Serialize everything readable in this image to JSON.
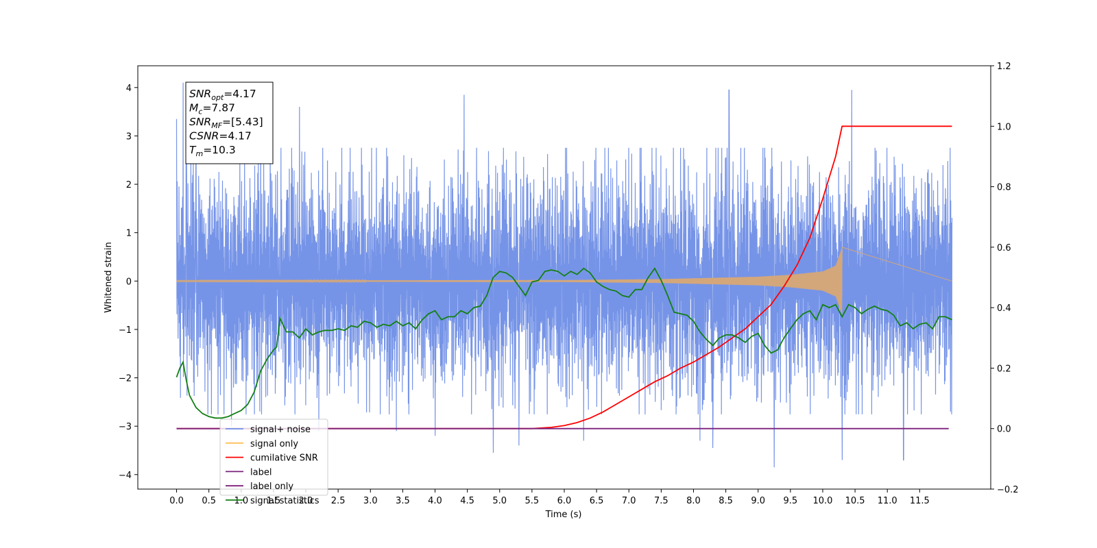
{
  "chart_data": {
    "type": "line",
    "xlabel": "Time (s)",
    "ylabel": "Whitened strain",
    "xlim": [
      -0.6,
      12.6
    ],
    "ylim": [
      -4.3,
      4.45
    ],
    "y2lim": [
      -0.2,
      1.2
    ],
    "xticks": [
      "0.0",
      "0.5",
      "1.0",
      "1.5",
      "2.0",
      "2.5",
      "3.0",
      "3.5",
      "4.0",
      "4.5",
      "5.0",
      "5.5",
      "6.0",
      "6.5",
      "7.0",
      "7.5",
      "8.0",
      "8.5",
      "9.0",
      "9.5",
      "10.0",
      "10.5",
      "11.0",
      "11.5"
    ],
    "yticks": [
      "4",
      "3",
      "2",
      "1",
      "0",
      "−1",
      "−2",
      "−3",
      "−4"
    ],
    "y2ticks": [
      "1.2",
      "1.0",
      "0.8",
      "0.6",
      "0.4",
      "0.2",
      "0.0",
      "−0.2"
    ],
    "grid": false,
    "legend_position": "lower-left",
    "annotation": {
      "lines": [
        {
          "sym": "SNR",
          "sub": "opt",
          "val": "=4.17"
        },
        {
          "sym": "M",
          "sub": "c",
          "val": "=7.87"
        },
        {
          "sym": "SNR",
          "sub": "MF",
          "val": "=[5.43]"
        },
        {
          "sym": "CSNR",
          "sub": "",
          "val": "=4.17"
        },
        {
          "sym": "T",
          "sub": "m",
          "val": "=10.3"
        }
      ]
    },
    "series": [
      {
        "name": "signal+ noise",
        "color": "#6f8ee6",
        "axis": "left",
        "kind": "noise",
        "x_start": 0.0,
        "x_end": 12.0,
        "envelope_typical": 1.9,
        "visible_peaks": [
          [
            0.0,
            3.35
          ],
          [
            0.1,
            4.1
          ],
          [
            0.15,
            4.0
          ],
          [
            0.3,
            3.6
          ],
          [
            0.85,
            -3.0
          ],
          [
            1.3,
            3.2
          ],
          [
            1.45,
            3.0
          ],
          [
            1.9,
            3.6
          ],
          [
            2.2,
            -3.1
          ],
          [
            3.4,
            -3.1
          ],
          [
            4.0,
            -3.2
          ],
          [
            4.45,
            3.85
          ],
          [
            4.9,
            -3.55
          ],
          [
            5.3,
            -3.4
          ],
          [
            6.3,
            -3.3
          ],
          [
            8.1,
            -3.3
          ],
          [
            8.3,
            -3.45
          ],
          [
            8.55,
            3.95
          ],
          [
            9.25,
            -3.85
          ],
          [
            10.3,
            -3.7
          ],
          [
            10.45,
            3.95
          ],
          [
            11.25,
            -3.7
          ]
        ]
      },
      {
        "name": "signal only",
        "color": "#d4a77a",
        "axis": "left",
        "kind": "chirp",
        "amplitude_points": [
          [
            0.0,
            0.01
          ],
          [
            6.0,
            0.02
          ],
          [
            7.5,
            0.04
          ],
          [
            9.0,
            0.09
          ],
          [
            9.5,
            0.13
          ],
          [
            10.0,
            0.2
          ],
          [
            10.2,
            0.32
          ],
          [
            10.3,
            0.7
          ]
        ],
        "x_end": 10.3,
        "tail_end": 12.0
      },
      {
        "name": "cumilative SNR",
        "color": "#ff0000",
        "axis": "right",
        "x": [
          0.0,
          5.5,
          5.8,
          6.0,
          6.2,
          6.4,
          6.6,
          6.8,
          7.0,
          7.2,
          7.4,
          7.6,
          7.8,
          8.0,
          8.2,
          8.4,
          8.6,
          8.8,
          9.0,
          9.2,
          9.4,
          9.6,
          9.8,
          10.0,
          10.1,
          10.2,
          10.3,
          12.0
        ],
        "values": [
          0.0,
          0.0,
          0.004,
          0.01,
          0.02,
          0.035,
          0.055,
          0.08,
          0.105,
          0.13,
          0.155,
          0.175,
          0.2,
          0.22,
          0.245,
          0.27,
          0.3,
          0.33,
          0.37,
          0.41,
          0.47,
          0.54,
          0.63,
          0.76,
          0.83,
          0.9,
          1.0,
          1.0
        ]
      },
      {
        "name": "label",
        "color": "#7a1f7a",
        "axis": "right",
        "x": [
          0.0,
          11.95
        ],
        "values": [
          0.0,
          0.0
        ]
      },
      {
        "name": "label only",
        "color": "#7a1f7a",
        "axis": "right",
        "x": [],
        "values": []
      },
      {
        "name": "signal statistics",
        "color": "#138013",
        "axis": "right",
        "x": [
          0.0,
          0.05,
          0.1,
          0.15,
          0.2,
          0.3,
          0.4,
          0.5,
          0.6,
          0.7,
          0.8,
          0.9,
          1.0,
          1.1,
          1.2,
          1.3,
          1.4,
          1.5,
          1.55,
          1.6,
          1.7,
          1.8,
          1.9,
          2.0,
          2.1,
          2.2,
          2.3,
          2.4,
          2.5,
          2.6,
          2.7,
          2.8,
          2.9,
          3.0,
          3.1,
          3.2,
          3.3,
          3.4,
          3.5,
          3.6,
          3.7,
          3.8,
          3.9,
          4.0,
          4.1,
          4.2,
          4.3,
          4.4,
          4.5,
          4.6,
          4.7,
          4.8,
          4.9,
          5.0,
          5.1,
          5.2,
          5.3,
          5.4,
          5.5,
          5.6,
          5.7,
          5.8,
          5.9,
          6.0,
          6.1,
          6.2,
          6.3,
          6.4,
          6.5,
          6.6,
          6.7,
          6.8,
          6.9,
          7.0,
          7.1,
          7.2,
          7.3,
          7.4,
          7.5,
          7.6,
          7.7,
          7.8,
          7.9,
          8.0,
          8.1,
          8.2,
          8.3,
          8.4,
          8.5,
          8.6,
          8.7,
          8.8,
          8.9,
          9.0,
          9.1,
          9.2,
          9.3,
          9.4,
          9.5,
          9.6,
          9.7,
          9.8,
          9.9,
          10.0,
          10.1,
          10.2,
          10.3,
          10.4,
          10.5,
          10.6,
          10.7,
          10.8,
          10.9,
          11.0,
          11.1,
          11.2,
          11.3,
          11.4,
          11.5,
          11.6,
          11.7,
          11.8,
          11.9,
          12.0
        ],
        "values": [
          0.17,
          0.2,
          0.22,
          0.16,
          0.11,
          0.07,
          0.05,
          0.04,
          0.035,
          0.035,
          0.04,
          0.05,
          0.06,
          0.08,
          0.12,
          0.19,
          0.23,
          0.26,
          0.27,
          0.365,
          0.32,
          0.32,
          0.3,
          0.33,
          0.31,
          0.32,
          0.325,
          0.325,
          0.33,
          0.325,
          0.34,
          0.335,
          0.355,
          0.35,
          0.335,
          0.345,
          0.34,
          0.355,
          0.34,
          0.35,
          0.33,
          0.36,
          0.38,
          0.39,
          0.36,
          0.37,
          0.37,
          0.39,
          0.38,
          0.4,
          0.405,
          0.44,
          0.5,
          0.52,
          0.515,
          0.5,
          0.47,
          0.44,
          0.485,
          0.49,
          0.52,
          0.525,
          0.52,
          0.505,
          0.52,
          0.51,
          0.53,
          0.515,
          0.485,
          0.47,
          0.46,
          0.455,
          0.44,
          0.435,
          0.46,
          0.46,
          0.5,
          0.53,
          0.49,
          0.44,
          0.385,
          0.38,
          0.375,
          0.355,
          0.32,
          0.295,
          0.275,
          0.3,
          0.31,
          0.31,
          0.3,
          0.285,
          0.305,
          0.315,
          0.275,
          0.25,
          0.26,
          0.3,
          0.33,
          0.36,
          0.38,
          0.39,
          0.36,
          0.41,
          0.4,
          0.41,
          0.37,
          0.41,
          0.4,
          0.38,
          0.395,
          0.405,
          0.395,
          0.39,
          0.375,
          0.34,
          0.35,
          0.33,
          0.345,
          0.35,
          0.33,
          0.37,
          0.37,
          0.36
        ]
      }
    ],
    "legend": [
      {
        "label": "signal+ noise",
        "color": "#6f8ee6"
      },
      {
        "label": "signal only",
        "color": "#ffbf5a"
      },
      {
        "label": "cumilative SNR",
        "color": "#ff0000"
      },
      {
        "label": "label",
        "color": "#7a1f7a"
      },
      {
        "label": "label only",
        "color": "#7a1f7a"
      },
      {
        "label": "signal statistics",
        "color": "#138013"
      }
    ]
  }
}
